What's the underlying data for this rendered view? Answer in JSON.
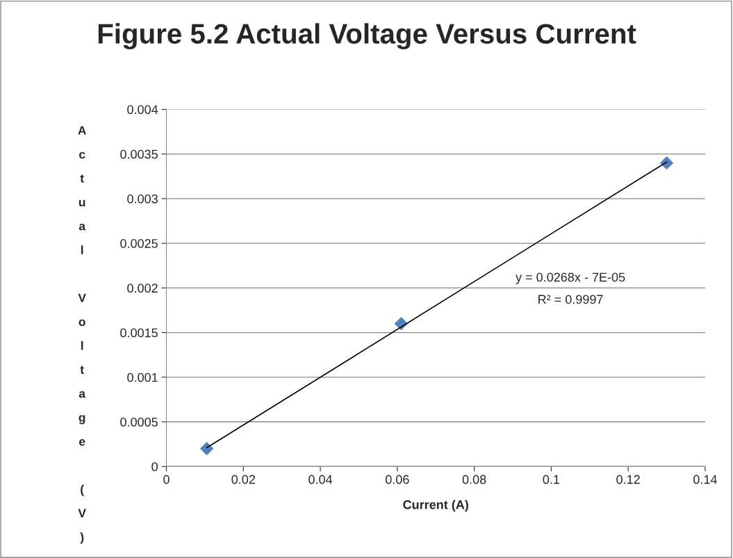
{
  "chart_data": {
    "type": "scatter",
    "title": "Figure 5.2 Actual Voltage Versus Current",
    "xlabel": "Current (A)",
    "ylabel": "Actual Voltage (V)",
    "x": [
      0.0105,
      0.061,
      0.13
    ],
    "series": [
      {
        "color": "#4f81bd",
        "values": [
          0.0002,
          0.0016,
          0.0034
        ],
        "marker": "diamond"
      },
      {
        "type": "line",
        "color": "#000000",
        "x": [
          0.0105,
          0.13
        ],
        "values": [
          0.00021,
          0.00341
        ],
        "marker": "none",
        "line_style": "solid"
      }
    ],
    "annotations": [
      "y = 0.0268x - 7E-05",
      "R² = 0.9997"
    ],
    "xlim": [
      0,
      0.14
    ],
    "xticks": [
      0,
      0.02,
      0.04,
      0.06,
      0.08,
      0.1,
      0.12,
      0.14
    ],
    "ylim": [
      0,
      0.004
    ],
    "yticks": [
      0,
      0.0005,
      0.001,
      0.0015,
      0.002,
      0.0025,
      0.003,
      0.0035,
      0.004
    ],
    "grid": "y"
  }
}
